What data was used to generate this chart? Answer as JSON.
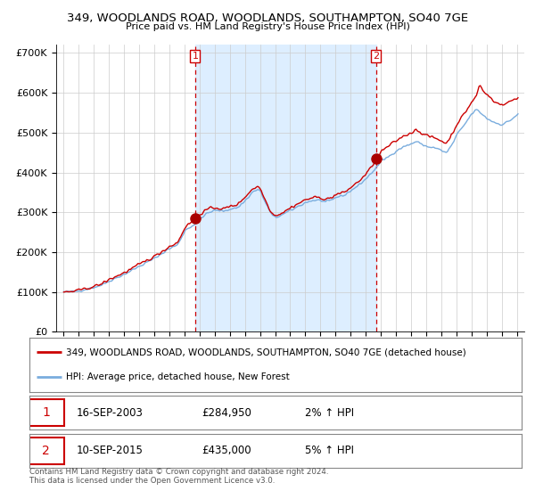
{
  "title": "349, WOODLANDS ROAD, WOODLANDS, SOUTHAMPTON, SO40 7GE",
  "subtitle": "Price paid vs. HM Land Registry's House Price Index (HPI)",
  "legend_line1": "349, WOODLANDS ROAD, WOODLANDS, SOUTHAMPTON, SO40 7GE (detached house)",
  "legend_line2": "HPI: Average price, detached house, New Forest",
  "transaction1_date": "16-SEP-2003",
  "transaction1_price": "£284,950",
  "transaction1_hpi": "2% ↑ HPI",
  "transaction1_year": 2003.71,
  "transaction1_value": 284950,
  "transaction2_date": "10-SEP-2015",
  "transaction2_price": "£435,000",
  "transaction2_hpi": "5% ↑ HPI",
  "transaction2_year": 2015.69,
  "transaction2_value": 435000,
  "line1_color": "#cc0000",
  "line2_color": "#7aadde",
  "marker_color": "#aa0000",
  "vline_color": "#cc0000",
  "shading_color": "#ddeeff",
  "grid_color": "#cccccc",
  "background_color": "#ffffff",
  "ylabel_values": [
    "£0",
    "£100K",
    "£200K",
    "£300K",
    "£400K",
    "£500K",
    "£600K",
    "£700K"
  ],
  "ylim": [
    0,
    720000
  ],
  "xlim_start": 1994.5,
  "xlim_end": 2025.5,
  "footer": "Contains HM Land Registry data © Crown copyright and database right 2024.\nThis data is licensed under the Open Government Licence v3.0."
}
